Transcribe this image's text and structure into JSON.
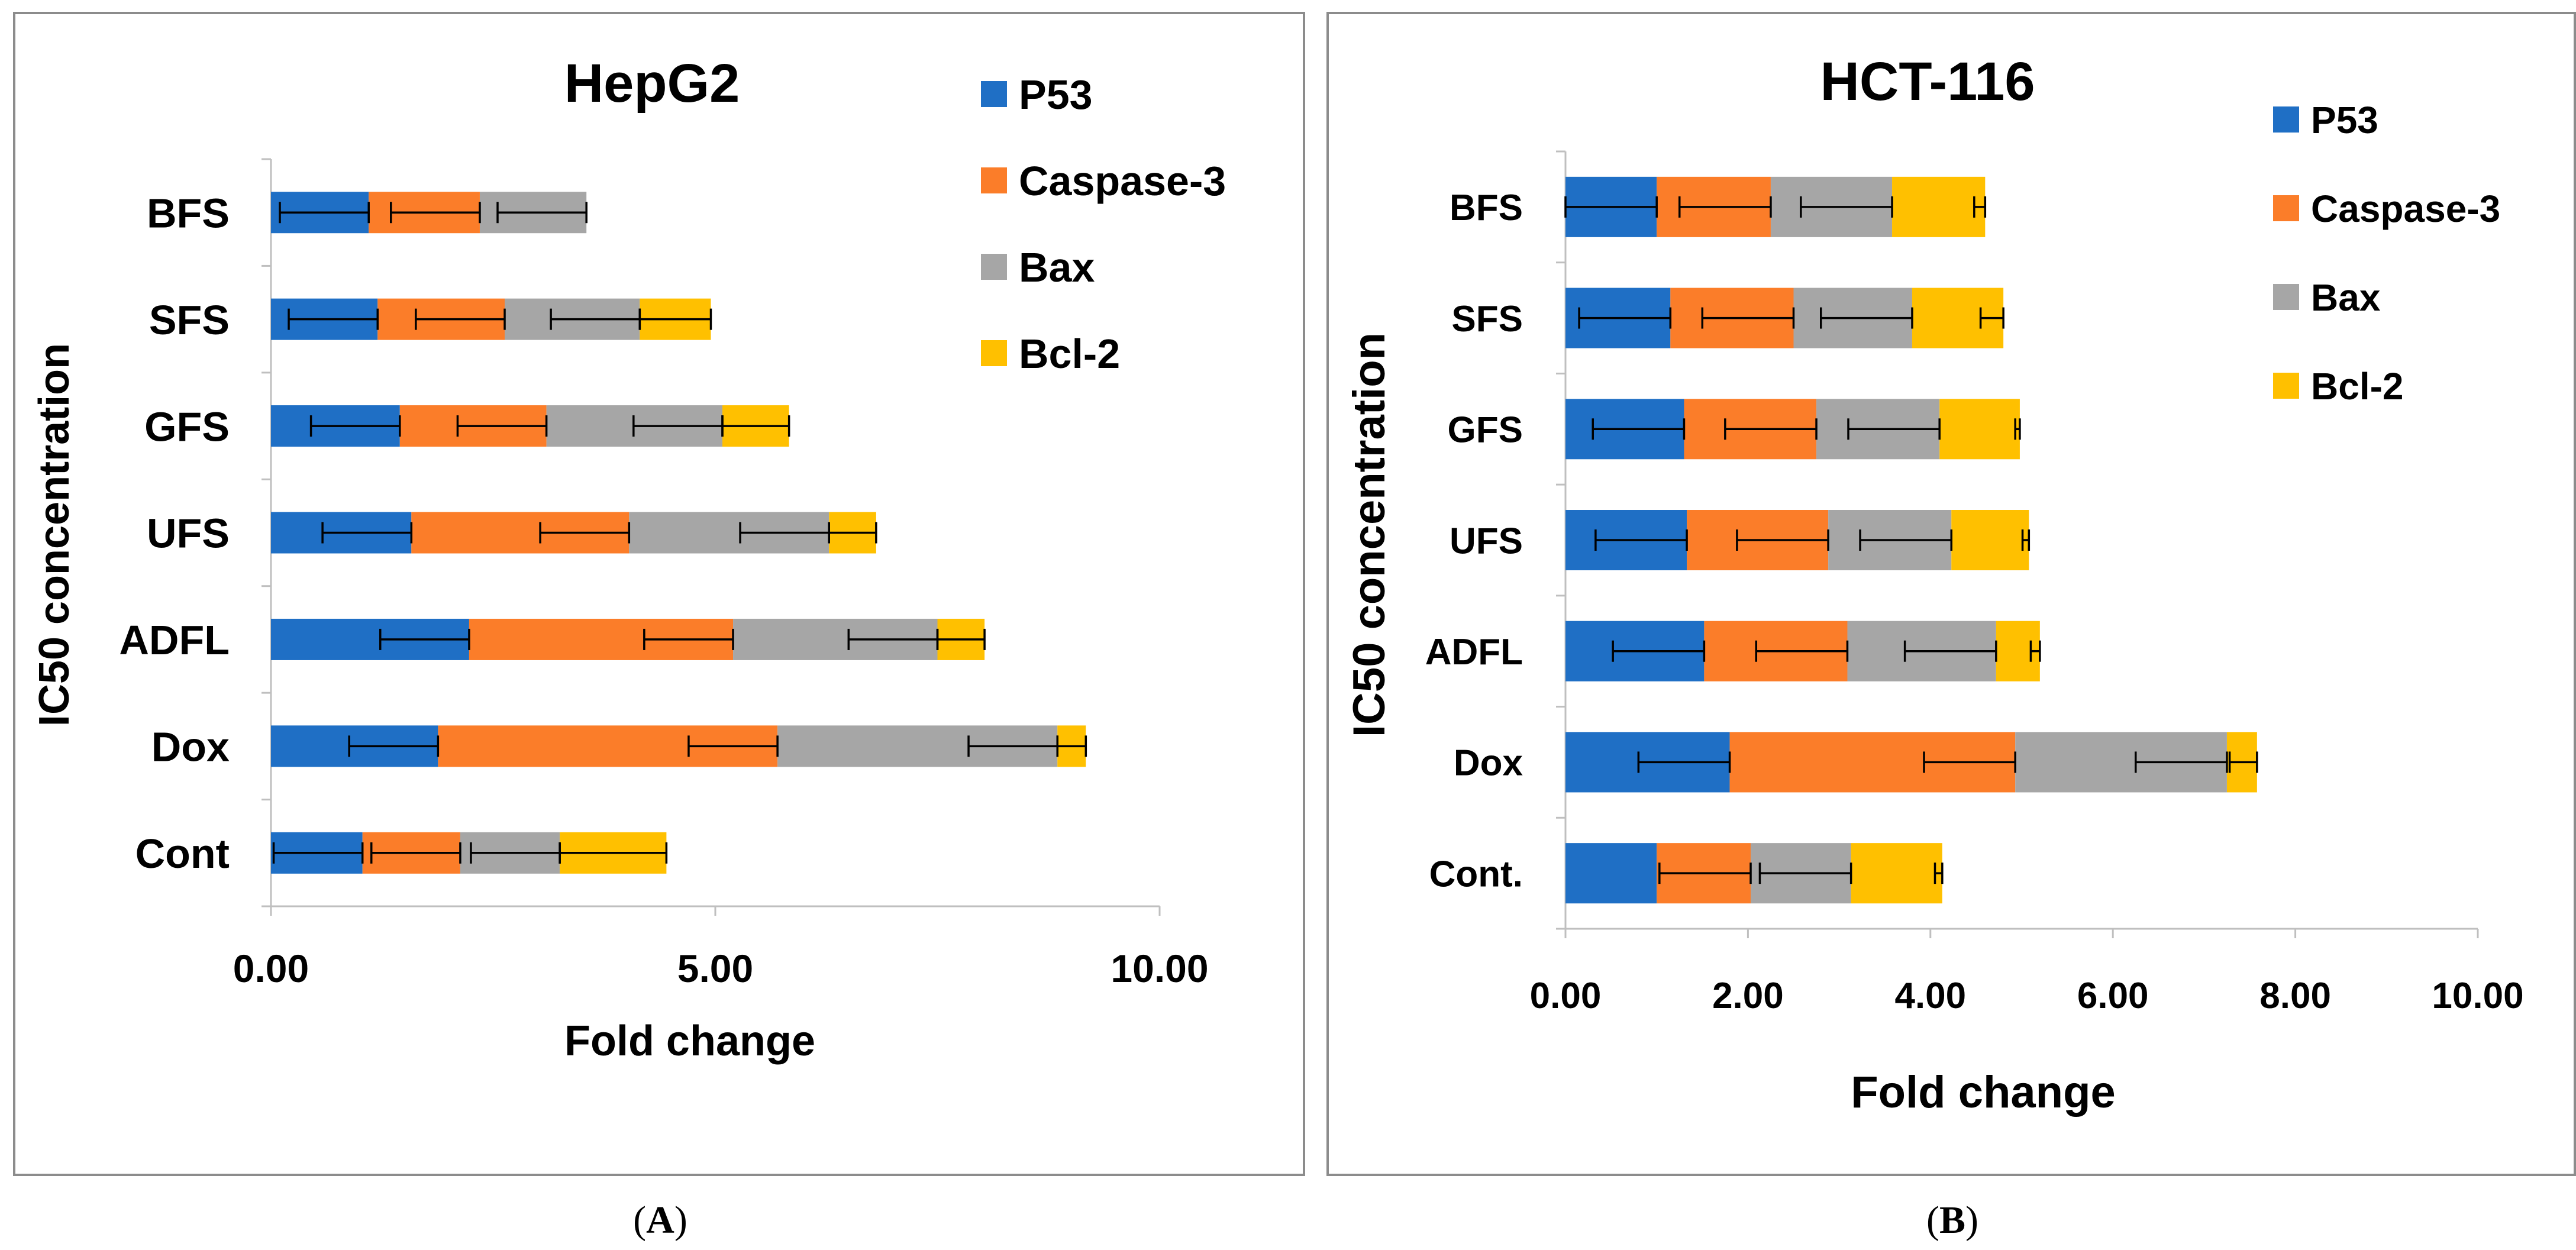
{
  "colors": {
    "P53": "#1f6fc5",
    "Caspase-3": "#fb7d29",
    "Bax": "#a6a6a6",
    "Bcl-2": "#ffc000",
    "axis": "#bfbfbf",
    "border": "#8c8c8c",
    "text": "#000000"
  },
  "captions": {
    "a_open": "(",
    "a_letter": "A",
    "a_close": ")",
    "b_open": "(",
    "b_letter": "B",
    "b_close": ")"
  },
  "chart_data": [
    {
      "type": "bar",
      "stacked": true,
      "orientation": "horizontal",
      "title": "HepG2",
      "xlabel": "Fold change",
      "ylabel": "IC50 concentration",
      "xlim": [
        0,
        10
      ],
      "xticks": [
        0,
        5,
        10
      ],
      "xtick_labels": [
        "0.00",
        "5.00",
        "10.00"
      ],
      "categories": [
        "BFS",
        "SFS",
        "GFS",
        "UFS",
        "ADFL",
        "Dox",
        "Cont"
      ],
      "legend_position": "top-right",
      "series": [
        {
          "name": "P53",
          "values": [
            1.1,
            1.2,
            1.45,
            1.58,
            2.23,
            1.88,
            1.03
          ],
          "error": [
            1.0,
            1.0,
            1.0,
            1.0,
            1.0,
            1.0,
            1.0
          ]
        },
        {
          "name": "Caspase-3",
          "values": [
            1.25,
            1.43,
            1.65,
            2.45,
            2.97,
            3.82,
            1.1
          ],
          "error": [
            1.0,
            1.0,
            1.0,
            1.0,
            1.0,
            1.0,
            1.0
          ]
        },
        {
          "name": "Bax",
          "values": [
            1.2,
            1.52,
            1.98,
            2.25,
            2.3,
            3.15,
            1.12
          ],
          "error": [
            1.0,
            1.0,
            1.0,
            1.0,
            1.0,
            1.0,
            1.0
          ]
        },
        {
          "name": "Bcl-2",
          "values": [
            0.0,
            0.8,
            0.75,
            0.53,
            0.53,
            0.32,
            1.2
          ],
          "error": [
            0.0,
            0.8,
            0.75,
            0.53,
            0.53,
            0.32,
            1.2
          ]
        }
      ]
    },
    {
      "type": "bar",
      "stacked": true,
      "orientation": "horizontal",
      "title": "HCT-116",
      "xlabel": "Fold change",
      "ylabel": "IC50 concentration",
      "xlim": [
        0,
        10
      ],
      "xticks": [
        0,
        2,
        4,
        6,
        8,
        10
      ],
      "xtick_labels": [
        "0.00",
        "2.00",
        "4.00",
        "6.00",
        "8.00",
        "10.00"
      ],
      "categories": [
        "BFS",
        "SFS",
        "GFS",
        "UFS",
        "ADFL",
        "Dox",
        "Cont."
      ],
      "legend_position": "top-right",
      "series": [
        {
          "name": "P53",
          "values": [
            1.0,
            1.15,
            1.3,
            1.33,
            1.52,
            1.8,
            1.0
          ],
          "error": [
            1.0,
            1.0,
            1.0,
            1.0,
            1.0,
            1.0,
            0.0
          ]
        },
        {
          "name": "Caspase-3",
          "values": [
            1.25,
            1.35,
            1.45,
            1.55,
            1.57,
            3.13,
            1.03
          ],
          "error": [
            1.0,
            1.0,
            1.0,
            1.0,
            1.0,
            1.0,
            1.0
          ]
        },
        {
          "name": "Bax",
          "values": [
            1.33,
            1.3,
            1.35,
            1.35,
            1.63,
            2.32,
            1.1
          ],
          "error": [
            1.0,
            1.0,
            1.0,
            1.0,
            1.0,
            1.0,
            1.0
          ]
        },
        {
          "name": "Bcl-2",
          "values": [
            1.02,
            1.0,
            0.88,
            0.85,
            0.48,
            0.33,
            1.0
          ],
          "error": [
            0.12,
            0.25,
            0.05,
            0.07,
            0.1,
            0.3,
            0.08
          ]
        }
      ]
    }
  ]
}
